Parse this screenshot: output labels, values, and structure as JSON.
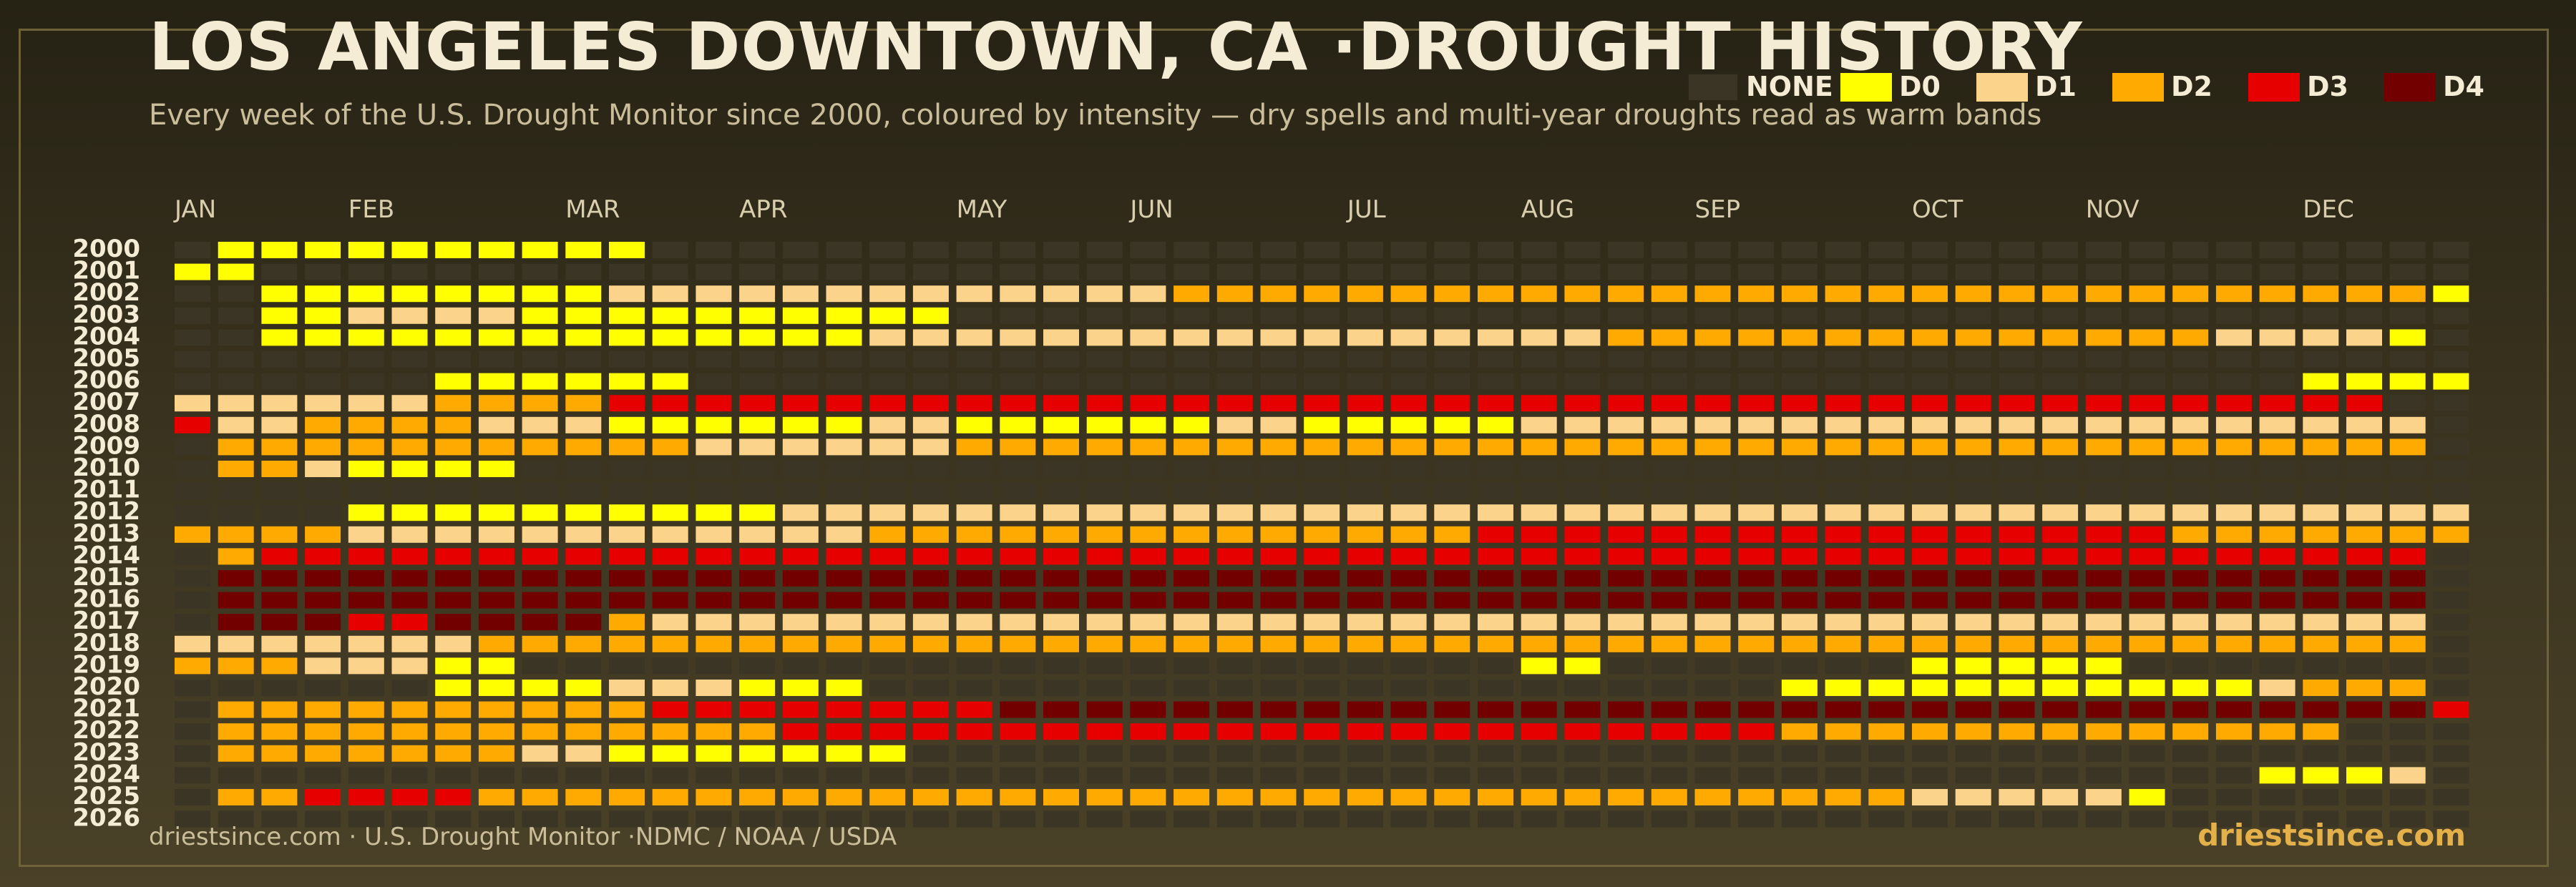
{
  "header": {
    "title": "LOS ANGELES DOWNTOWN, CA ·DROUGHT HISTORY",
    "subtitle": "Every week of the U.S. Drought Monitor since 2000, coloured by intensity — dry spells and multi-year droughts read as warm bands"
  },
  "legend": [
    {
      "label": "NONE",
      "color": "#3a3524"
    },
    {
      "label": "D0",
      "color": "#ffff00"
    },
    {
      "label": "D1",
      "color": "#fcd38a"
    },
    {
      "label": "D2",
      "color": "#ffaa00"
    },
    {
      "label": "D3",
      "color": "#e60000"
    },
    {
      "label": "D4",
      "color": "#730000"
    }
  ],
  "footer": {
    "source": "driestsince.com  · U.S. Drought Monitor ·NDMC / NOAA / USDA",
    "brand": "driestsince.com"
  },
  "chart_data": {
    "type": "heatmap",
    "title": "LOS ANGELES DOWNTOWN, CA ·DROUGHT HISTORY",
    "x_label": "",
    "y_label": "",
    "months": [
      "JAN",
      "FEB",
      "MAR",
      "APR",
      "MAY",
      "JUN",
      "JUL",
      "AUG",
      "SEP",
      "OCT",
      "NOV",
      "DEC"
    ],
    "weeks_per_year": 53,
    "levels": [
      "NONE",
      "D0",
      "D1",
      "D2",
      "D3",
      "D4"
    ],
    "years": [
      2000,
      2001,
      2002,
      2003,
      2004,
      2005,
      2006,
      2007,
      2008,
      2009,
      2010,
      2011,
      2012,
      2013,
      2014,
      2015,
      2016,
      2017,
      2018,
      2019,
      2020,
      2021,
      2022,
      2023,
      2024,
      2025,
      2026
    ],
    "rows": [
      "N1111111111NNNNNNNNNNNNNNNNNNNNNNNNNNNNNNNNNNNNNNNNNN",
      "11NNNNNNNNNNNNNNNNNNNNNNNNNNNNNNNNNNNNNNNNNNNNNNNNNNN",
      "NN1111111122222222222223333333333333333333333333333311",
      "NN1122221111111111NNNNNNNNNNNNNNNNNNNNNNNNNNNNNNNNNNNN",
      "NN11111111111111222222222222222223333333333333322221",
      "NNNNNNNNNNNNNNNNNNNNNNNNNNNNNNNNNNNNNNNNNNNNNNNNNNNNN",
      "NNNNNN111111NNNNNNNNNNNNNNNNNNNNNNNNNNNNNNNNNNNNN1111",
      "222222333344444444444444444444444444444444444444444N",
      "4223333222111111221111112211111222222222222222222222N",
      "N333333333332222223333333333333333333333333333333333",
      "N3321111NNNNNNNNNNNNNNNNNNNNNNNNNNNNNNNNNNNNNNNNNNNNN",
      "NNNNNNNNNNNNNNNNNNNNNNNNNNNNNNNNNNNNNNNNNNNNNNNNNNNNN",
      "NNNN1111111111222222222222222222222222222222222222222",
      "33332222222222223333333333333344444444444444443333333",
      "N344444444444444444444444444444444444444444444444444",
      "N555555555555555555555555555555555555555555555555555",
      "N555555555555555555555555555555555555555555555555555",
      "N555445555322222222222222222222222222222222222222222",
      "2222222333333333333333333333333333333333333333333333N",
      "33322211NNNNNNNNNNNNNNNNNNNNNNN11NNNNNNN11111NNNNNNNN",
      "NNNNNN1111222111NNNNNNNNNNNNNNNNNNNNN111111111112333",
      "N3333333333444444445555555555555555555555555555555554",
      "N3333333333333444444444444444444444443333333333333N",
      "N3333333221111111NNNNNNNNNNNNNNNNNNNNNNNNNNNNNNNNNNNN",
      "NNNNNNNNNNNNNNNNNNNNNNNNNNNNNNNNNNNNNNNNNNNNNNNN1112",
      "N334444333333333333333333333333333333333222221NNNNNNN",
      "NNNNNNNNNNNNNNNNNNNNNNNNNNNNNNNNNNNNNNNNNNNNNNNNNNNNN"
    ]
  }
}
